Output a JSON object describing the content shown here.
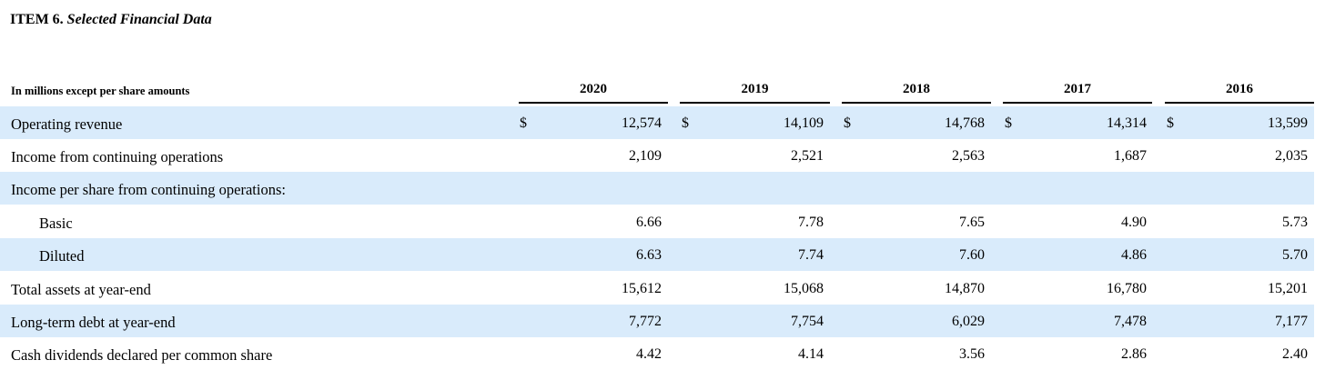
{
  "title": {
    "item": "ITEM 6.",
    "subtitle": "Selected Financial Data"
  },
  "table": {
    "header_label": "In millions except per share amounts",
    "years": [
      "2020",
      "2019",
      "2018",
      "2017",
      "2016"
    ],
    "rows": [
      {
        "label": "Operating revenue",
        "currency": "$",
        "values": [
          "12,574",
          "14,109",
          "14,768",
          "14,314",
          "13,599"
        ]
      },
      {
        "label": "Income from continuing operations",
        "values": [
          "2,109",
          "2,521",
          "2,563",
          "1,687",
          "2,035"
        ]
      },
      {
        "label": "Income per share from continuing operations:",
        "values": []
      },
      {
        "label": "Basic",
        "values": [
          "6.66",
          "7.78",
          "7.65",
          "4.90",
          "5.73"
        ]
      },
      {
        "label": "Diluted",
        "values": [
          "6.63",
          "7.74",
          "7.60",
          "4.86",
          "5.70"
        ]
      },
      {
        "label": "Total assets at year-end",
        "values": [
          "15,612",
          "15,068",
          "14,870",
          "16,780",
          "15,201"
        ]
      },
      {
        "label": "Long-term debt at year-end",
        "values": [
          "7,772",
          "7,754",
          "6,029",
          "7,478",
          "7,177"
        ]
      },
      {
        "label": "Cash dividends declared per common share",
        "values": [
          "4.42",
          "4.14",
          "3.56",
          "2.86",
          "2.40"
        ]
      }
    ]
  }
}
